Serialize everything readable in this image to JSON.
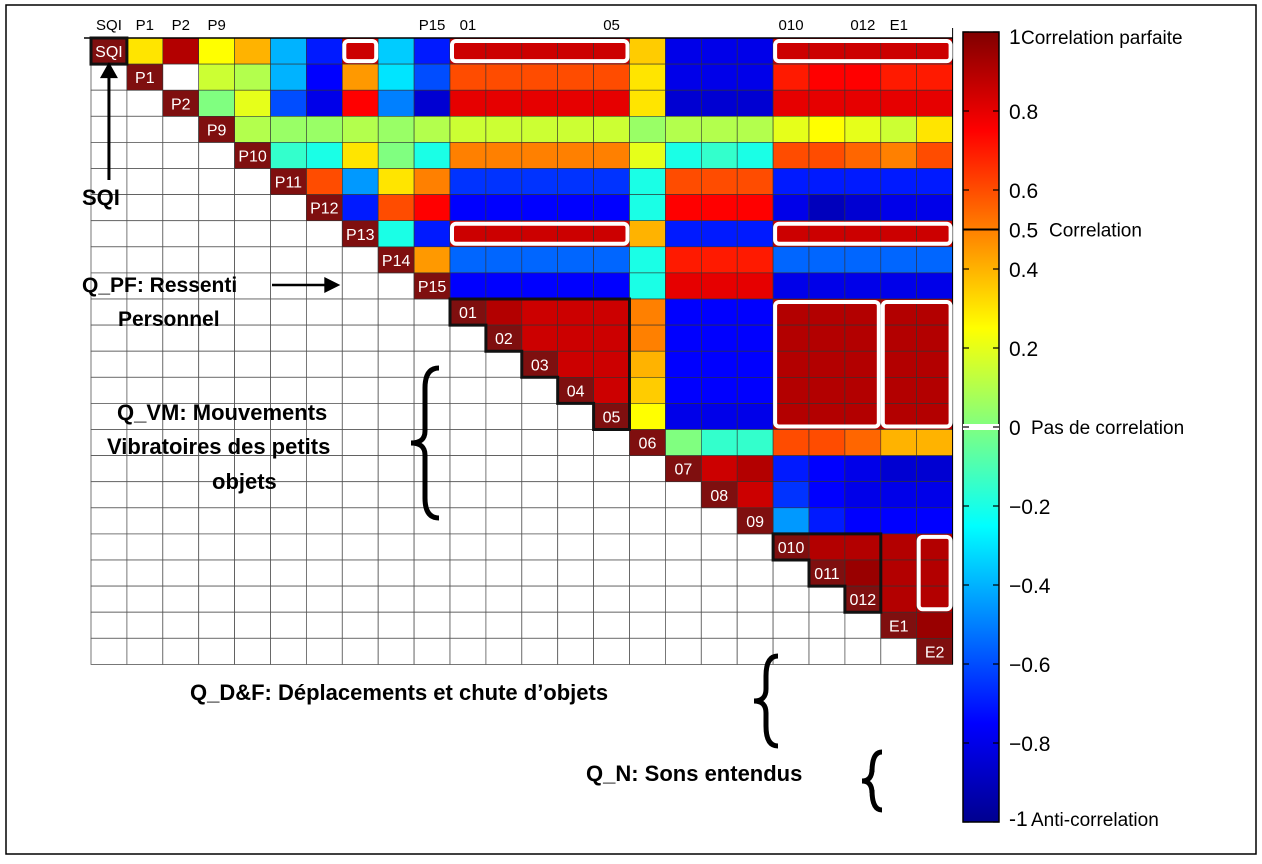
{
  "chart_data": {
    "type": "heatmap",
    "variables": [
      "SQI",
      "P1",
      "P2",
      "P9",
      "P10",
      "P11",
      "P12",
      "P13",
      "P14",
      "P15",
      "01",
      "02",
      "03",
      "04",
      "05",
      "06",
      "07",
      "08",
      "09",
      "010",
      "011",
      "012",
      "E1",
      "E2"
    ],
    "top_labels": {
      "SQI": "SQI",
      "P1": "P1",
      "P2": "P2",
      "P9": "P9",
      "P15": "P15",
      "01": "01",
      "05": "05",
      "010": "010",
      "012": "012",
      "E1": "E1"
    },
    "scale_min": -1,
    "scale_max": 1,
    "rows": [
      [
        0.3,
        0.9,
        0.25,
        0.4,
        -0.4,
        -0.7,
        0.85,
        -0.35,
        -0.7,
        0.85,
        0.85,
        0.85,
        0.85,
        0.85,
        0.35,
        -0.8,
        -0.8,
        -0.8,
        0.85,
        0.85,
        0.85,
        0.85,
        0.85
      ],
      [
        null,
        0.15,
        0.1,
        -0.4,
        -0.75,
        0.45,
        -0.3,
        -0.6,
        0.6,
        0.6,
        0.6,
        0.6,
        0.6,
        0.3,
        -0.8,
        -0.8,
        -0.8,
        0.7,
        0.75,
        0.75,
        0.7,
        0.7
      ],
      [
        0,
        0.2,
        -0.6,
        -0.8,
        0.75,
        -0.5,
        -0.85,
        0.8,
        0.8,
        0.8,
        0.8,
        0.8,
        0.3,
        -0.85,
        -0.85,
        -0.85,
        0.8,
        0.8,
        0.8,
        0.8,
        0.8
      ],
      [
        0.1,
        0.05,
        0.05,
        0.1,
        0.05,
        0.1,
        0.15,
        0.15,
        0.15,
        0.15,
        0.15,
        0.05,
        0.1,
        0.1,
        0.1,
        0.2,
        0.25,
        0.2,
        0.15,
        0.3
      ],
      [
        -0.15,
        -0.2,
        0.3,
        0,
        -0.2,
        0.5,
        0.5,
        0.5,
        0.5,
        0.5,
        0.2,
        -0.2,
        -0.15,
        -0.2,
        0.6,
        0.6,
        0.55,
        0.5,
        0.6
      ],
      [
        0.6,
        -0.45,
        0.3,
        0.5,
        -0.65,
        -0.65,
        -0.65,
        -0.65,
        -0.65,
        -0.2,
        0.6,
        0.6,
        0.6,
        -0.7,
        -0.7,
        -0.7,
        -0.7,
        -0.7
      ],
      [
        -0.7,
        0.6,
        0.75,
        -0.75,
        -0.75,
        -0.75,
        -0.75,
        -0.75,
        -0.2,
        0.75,
        0.75,
        0.75,
        -0.8,
        -0.9,
        -0.85,
        -0.8,
        -0.8
      ],
      [
        -0.2,
        -0.7,
        0.85,
        0.85,
        0.85,
        0.85,
        0.85,
        0.4,
        -0.7,
        -0.7,
        -0.7,
        0.85,
        0.85,
        0.85,
        0.85,
        0.85
      ],
      [
        0.45,
        -0.55,
        -0.55,
        -0.55,
        -0.55,
        -0.55,
        -0.2,
        0.7,
        0.7,
        0.7,
        -0.55,
        -0.55,
        -0.55,
        -0.55,
        -0.55
      ],
      [
        -0.75,
        -0.75,
        -0.75,
        -0.75,
        -0.75,
        -0.2,
        0.8,
        0.8,
        0.8,
        -0.8,
        -0.8,
        -0.8,
        -0.8,
        -0.8
      ],
      [
        0.9,
        0.85,
        0.85,
        0.85,
        0.5,
        -0.75,
        -0.75,
        -0.75,
        0.9,
        0.9,
        0.9,
        0.9,
        0.9
      ],
      [
        0.85,
        0.85,
        0.85,
        0.5,
        -0.75,
        -0.75,
        -0.75,
        0.9,
        0.9,
        0.9,
        0.9,
        0.9
      ],
      [
        0.85,
        0.85,
        0.4,
        -0.75,
        -0.75,
        -0.75,
        0.9,
        0.9,
        0.9,
        0.9,
        0.9
      ],
      [
        0.85,
        0.35,
        -0.75,
        -0.75,
        -0.75,
        0.9,
        0.9,
        0.9,
        0.9,
        0.9
      ],
      [
        0.25,
        -0.8,
        -0.8,
        -0.8,
        0.9,
        0.9,
        0.9,
        0.9,
        0.9
      ],
      [
        0,
        -0.15,
        -0.15,
        0.6,
        0.6,
        0.55,
        0.4,
        0.4
      ],
      [
        0.85,
        0.9,
        -0.7,
        -0.75,
        -0.8,
        -0.85,
        -0.85
      ],
      [
        0.85,
        -0.65,
        -0.75,
        -0.8,
        -0.8,
        -0.8
      ],
      [
        -0.45,
        -0.7,
        -0.75,
        -0.75,
        -0.75
      ],
      [
        0.9,
        0.9,
        0.9,
        0.9
      ],
      [
        0.95,
        0.9,
        0.9
      ],
      [
        0.9,
        0.9
      ],
      [
        0.95
      ]
    ],
    "colorbar": {
      "ticks": [
        {
          "value": 1,
          "label": "1"
        },
        {
          "value": 0.8,
          "label": "0.8"
        },
        {
          "value": 0.6,
          "label": "0.6"
        },
        {
          "value": 0.5,
          "label": "0.5"
        },
        {
          "value": 0.4,
          "label": "0.4"
        },
        {
          "value": 0.2,
          "label": "0.2"
        },
        {
          "value": 0,
          "label": "0"
        },
        {
          "value": -0.2,
          "label": "−0.2"
        },
        {
          "value": -0.4,
          "label": "−0.4"
        },
        {
          "value": -0.6,
          "label": "−0.6"
        },
        {
          "value": -0.8,
          "label": "−0.8"
        },
        {
          "value": -1,
          "label": "-1"
        }
      ],
      "annotations": [
        {
          "value": 1,
          "text": "Correlation parfaite"
        },
        {
          "value": 0.5,
          "text": "Correlation"
        },
        {
          "value": 0,
          "text": "Pas de correlation"
        },
        {
          "value": -1,
          "text": "Anti-correlation"
        }
      ]
    },
    "groups": [
      {
        "name": "SQI",
        "text": "SQI"
      },
      {
        "name": "Q_PF",
        "lines": [
          "Q_PF: Ressenti",
          "Personnel"
        ]
      },
      {
        "name": "Q_VM",
        "lines": [
          "Q_VM: Mouvements",
          "Vibratoires des petits",
          "objets"
        ]
      },
      {
        "name": "Q_D&F",
        "lines": [
          "Q_D&F: Déplacements et chute d’objets"
        ]
      },
      {
        "name": "Q_N",
        "lines": [
          "Q_N: Sons entendus"
        ]
      }
    ],
    "colors": {
      "diag": "#7f0f0f",
      "cell_border": "#555555",
      "frame": "#000000"
    }
  }
}
